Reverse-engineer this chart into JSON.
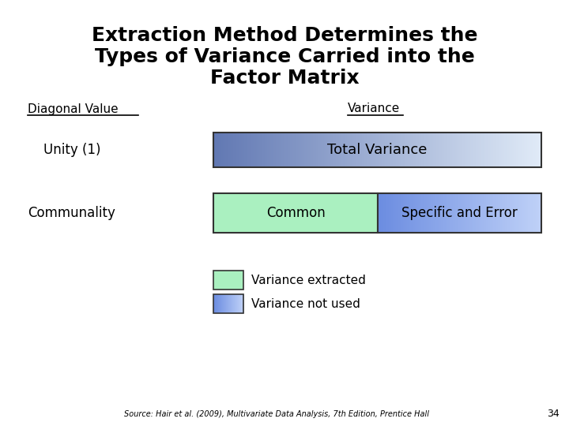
{
  "title_line1": "Extraction Method Determines the",
  "title_line2": "Types of Variance Carried into the",
  "title_line3": "Factor Matrix",
  "bg_color": "#ffffff",
  "label_diagonal": "Diagonal Value",
  "label_variance": "Variance",
  "label_unity": "Unity (1)",
  "label_communality": "Communality",
  "label_total_variance": "Total Variance",
  "label_common": "Common",
  "label_specific": "Specific and Error",
  "legend_extracted": "Variance extracted",
  "legend_not_used": "Variance not used",
  "source_text": "Source: Hair et al. (2009), Multivariate Data Analysis, 7th Edition, Prentice Hall",
  "page_number": "34",
  "box_border_color": "#333333"
}
